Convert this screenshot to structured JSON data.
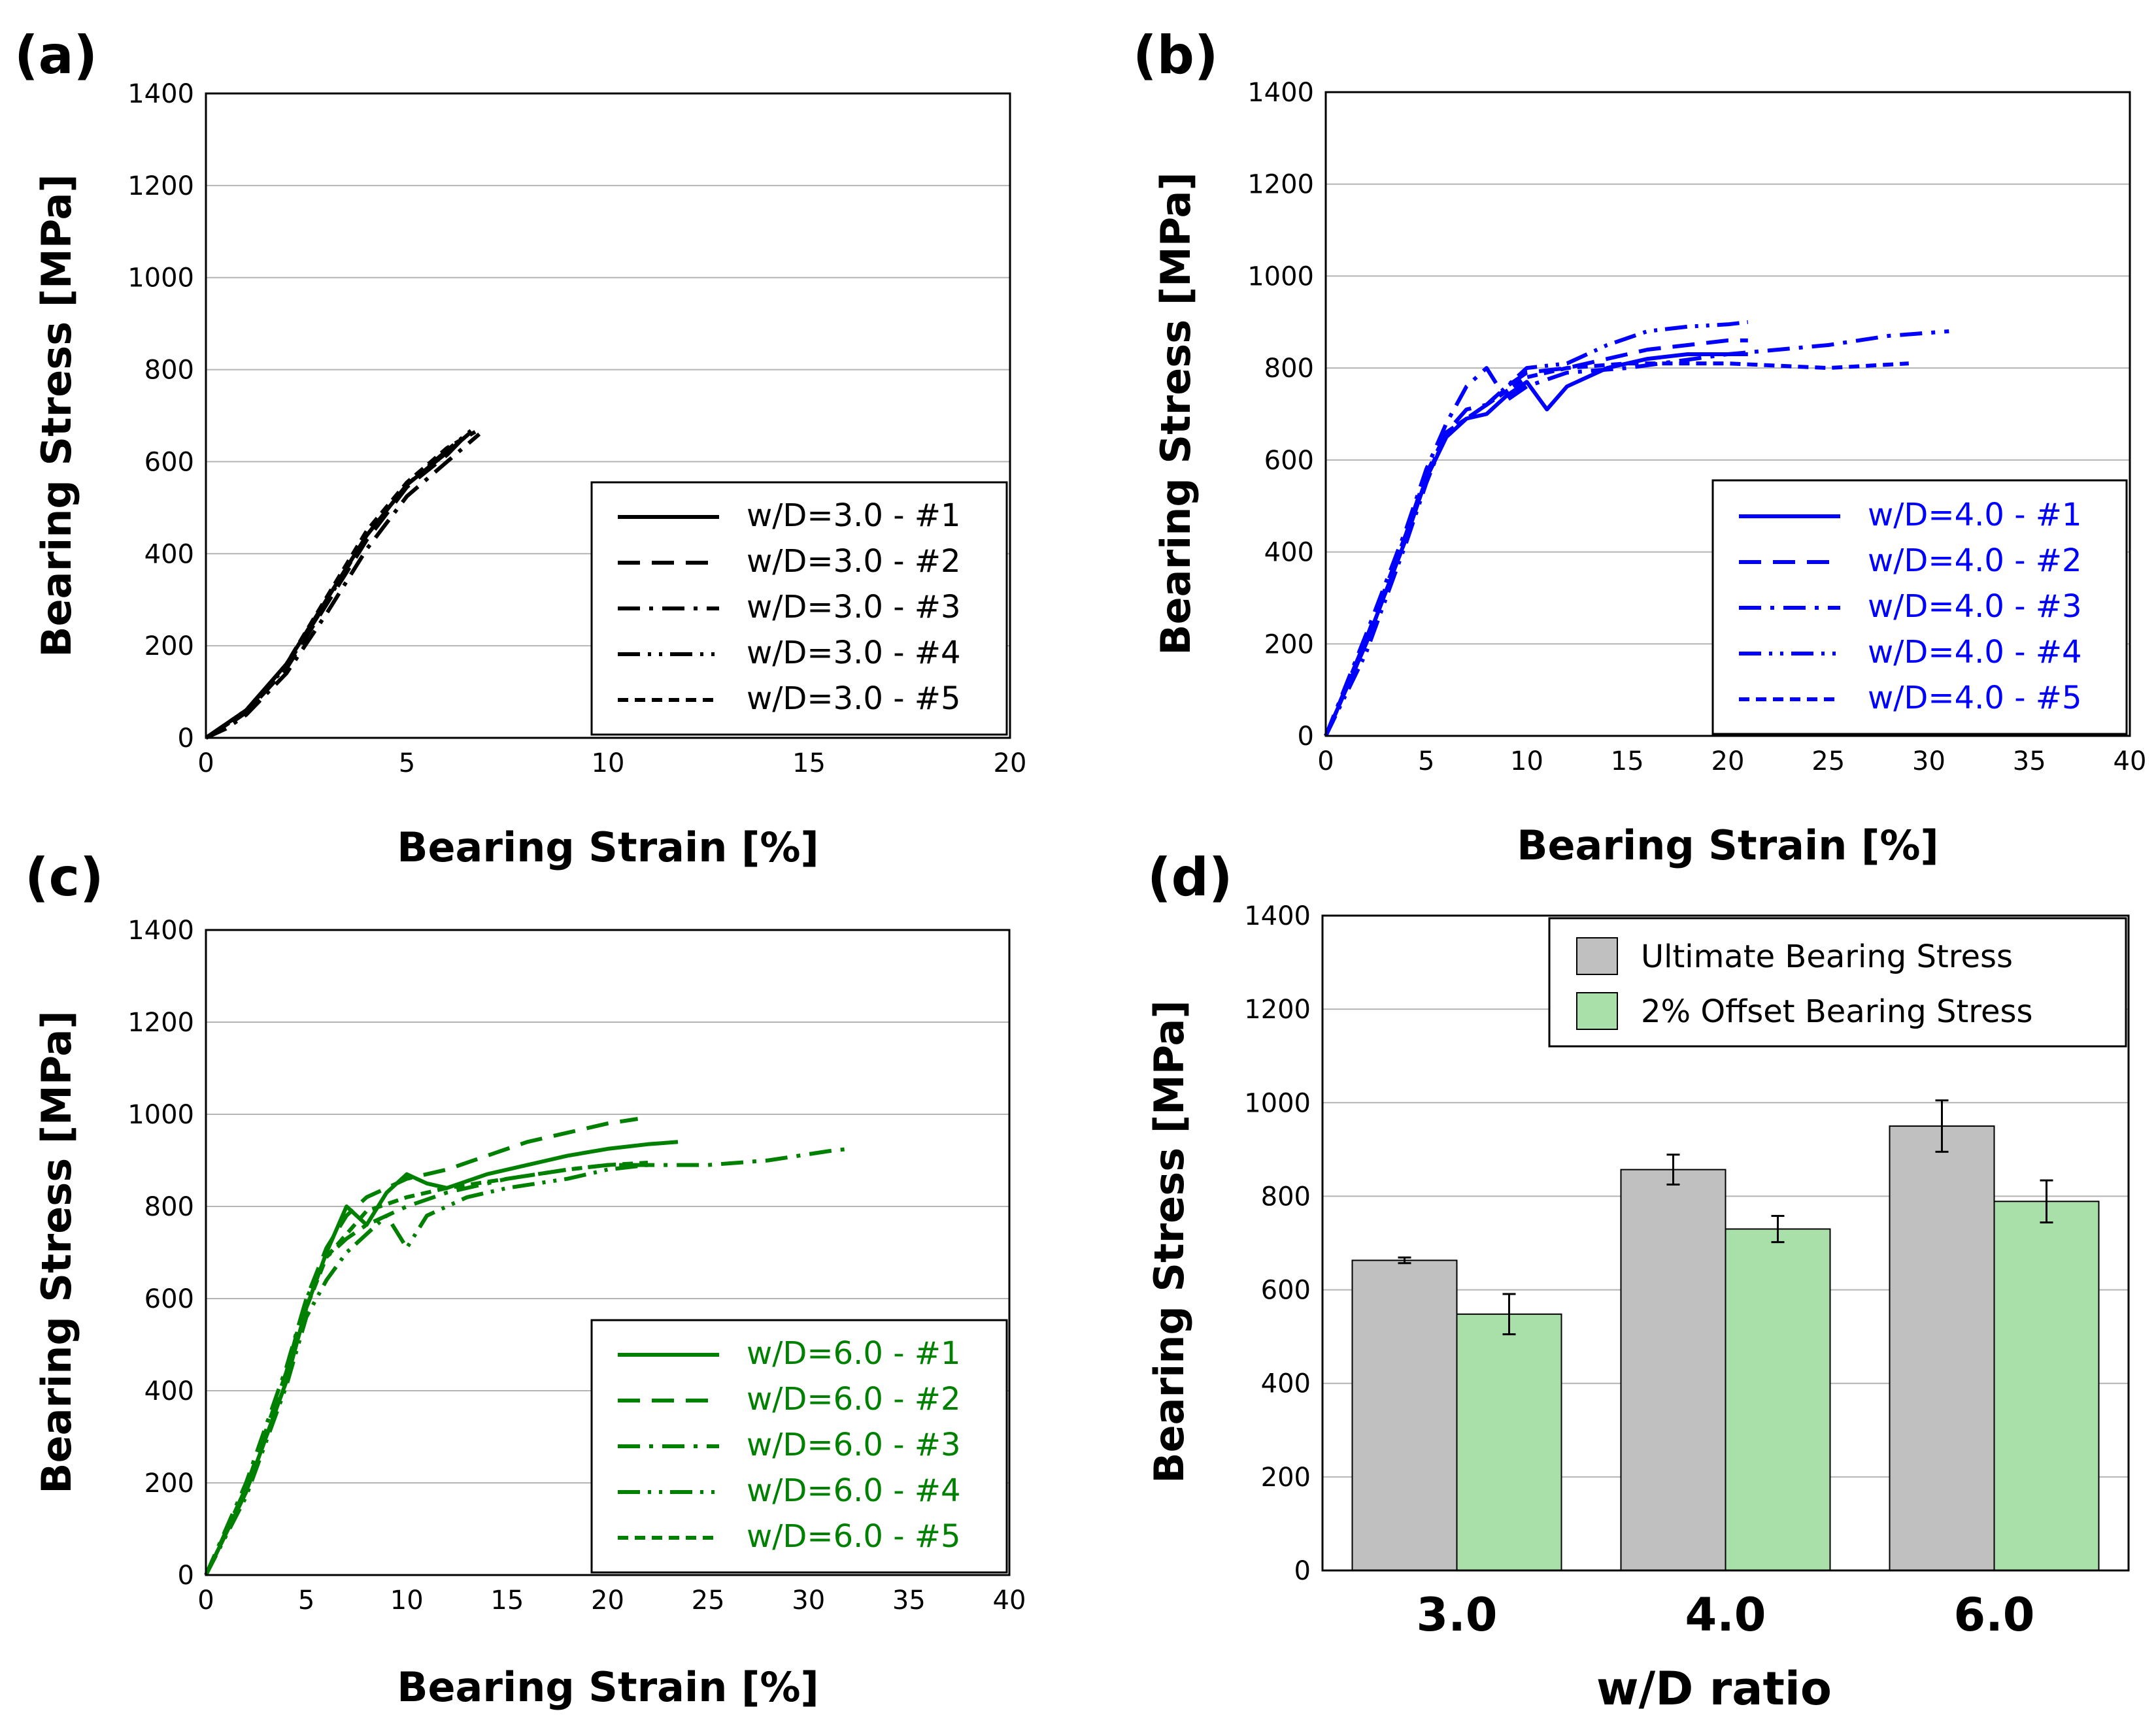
{
  "chart_data": [
    {
      "panel_label": "(a)",
      "type": "line",
      "xlabel": "Bearing Strain [%]",
      "ylabel": "Bearing Stress [MPa]",
      "xlim": [
        0,
        20
      ],
      "ylim": [
        0,
        1400
      ],
      "xticks": [
        "0",
        "5",
        "10",
        "15",
        "20"
      ],
      "yticks": [
        "0",
        "200",
        "400",
        "600",
        "800",
        "1000",
        "1200",
        "1400"
      ],
      "grid": "horizontal",
      "legend_position": "bottom-right",
      "color": "#000000",
      "series": [
        {
          "name": "w/D=3.0 - #1",
          "style": "solid",
          "points": [
            [
              0,
              0
            ],
            [
              0.5,
              30
            ],
            [
              1,
              60
            ],
            [
              2,
              160
            ],
            [
              3,
              300
            ],
            [
              4,
              440
            ],
            [
              5,
              550
            ],
            [
              6,
              620
            ],
            [
              6.6,
              665
            ]
          ]
        },
        {
          "name": "w/D=3.0 - #2",
          "style": "dashed",
          "points": [
            [
              0,
              0
            ],
            [
              0.5,
              25
            ],
            [
              1,
              55
            ],
            [
              2,
              150
            ],
            [
              3,
              290
            ],
            [
              4,
              430
            ],
            [
              5,
              545
            ],
            [
              6,
              615
            ],
            [
              6.5,
              660
            ]
          ]
        },
        {
          "name": "w/D=3.0 - #3",
          "style": "dashdot",
          "points": [
            [
              0,
              0
            ],
            [
              0.5,
              20
            ],
            [
              1,
              50
            ],
            [
              2,
              140
            ],
            [
              3,
              270
            ],
            [
              4,
              410
            ],
            [
              5,
              525
            ],
            [
              6,
              600
            ],
            [
              6.8,
              660
            ]
          ]
        },
        {
          "name": "w/D=3.0 - #4",
          "style": "dashdotdot",
          "points": [
            [
              0,
              0
            ],
            [
              0.5,
              30
            ],
            [
              1,
              60
            ],
            [
              2,
              155
            ],
            [
              3,
              295
            ],
            [
              4,
              440
            ],
            [
              5,
              550
            ],
            [
              6,
              625
            ],
            [
              6.6,
              668
            ]
          ]
        },
        {
          "name": "w/D=3.0 - #5",
          "style": "shortdash",
          "points": [
            [
              0,
              0
            ],
            [
              0.5,
              28
            ],
            [
              1,
              58
            ],
            [
              2,
              160
            ],
            [
              3,
              305
            ],
            [
              4,
              450
            ],
            [
              5,
              555
            ],
            [
              6,
              630
            ],
            [
              6.7,
              665
            ]
          ]
        }
      ]
    },
    {
      "panel_label": "(b)",
      "type": "line",
      "xlabel": "Bearing Strain [%]",
      "ylabel": "Bearing Stress [MPa]",
      "xlim": [
        0,
        40
      ],
      "ylim": [
        0,
        1400
      ],
      "xticks": [
        "0",
        "5",
        "10",
        "15",
        "20",
        "25",
        "30",
        "35",
        "40"
      ],
      "yticks": [
        "0",
        "200",
        "400",
        "600",
        "800",
        "1000",
        "1200",
        "1400"
      ],
      "grid": "horizontal",
      "legend_position": "bottom-right",
      "color": "#0000ff",
      "series": [
        {
          "name": "w/D=4.0 - #1",
          "style": "solid",
          "points": [
            [
              0,
              0
            ],
            [
              2,
              200
            ],
            [
              4,
              430
            ],
            [
              5,
              560
            ],
            [
              6,
              650
            ],
            [
              7,
              690
            ],
            [
              8,
              700
            ],
            [
              9,
              740
            ],
            [
              10,
              770
            ],
            [
              11,
              710
            ],
            [
              12,
              760
            ],
            [
              14,
              800
            ],
            [
              16,
              820
            ],
            [
              18,
              830
            ],
            [
              20,
              830
            ],
            [
              21,
              830
            ]
          ]
        },
        {
          "name": "w/D=4.0 - #2",
          "style": "dashed",
          "points": [
            [
              0,
              0
            ],
            [
              2,
              210
            ],
            [
              4,
              440
            ],
            [
              5,
              570
            ],
            [
              6,
              660
            ],
            [
              7,
              710
            ],
            [
              8,
              720
            ],
            [
              9,
              760
            ],
            [
              10,
              790
            ],
            [
              12,
              800
            ],
            [
              14,
              820
            ],
            [
              16,
              840
            ],
            [
              18,
              850
            ],
            [
              20,
              860
            ],
            [
              21,
              860
            ]
          ]
        },
        {
          "name": "w/D=4.0 - #3",
          "style": "dashdot",
          "points": [
            [
              0,
              0
            ],
            [
              2,
              220
            ],
            [
              4,
              450
            ],
            [
              5,
              580
            ],
            [
              6,
              680
            ],
            [
              7,
              760
            ],
            [
              8,
              800
            ],
            [
              9,
              730
            ],
            [
              10,
              760
            ],
            [
              12,
              790
            ],
            [
              15,
              800
            ],
            [
              20,
              830
            ],
            [
              25,
              850
            ],
            [
              28,
              870
            ],
            [
              31,
              880
            ]
          ]
        },
        {
          "name": "w/D=4.0 - #4",
          "style": "dashdotdot",
          "points": [
            [
              0,
              0
            ],
            [
              2,
              180
            ],
            [
              4,
              420
            ],
            [
              5,
              550
            ],
            [
              6,
              660
            ],
            [
              8,
              720
            ],
            [
              10,
              800
            ],
            [
              12,
              810
            ],
            [
              14,
              850
            ],
            [
              16,
              880
            ],
            [
              18,
              890
            ],
            [
              20,
              895
            ],
            [
              21,
              900
            ]
          ]
        },
        {
          "name": "w/D=4.0 - #5",
          "style": "shortdash",
          "points": [
            [
              0,
              0
            ],
            [
              2,
              200
            ],
            [
              4,
              430
            ],
            [
              5,
              560
            ],
            [
              6,
              660
            ],
            [
              8,
              720
            ],
            [
              10,
              780
            ],
            [
              12,
              800
            ],
            [
              15,
              810
            ],
            [
              20,
              810
            ],
            [
              25,
              800
            ],
            [
              29,
              810
            ]
          ]
        }
      ]
    },
    {
      "panel_label": "(c)",
      "type": "line",
      "xlabel": "Bearing Strain [%]",
      "ylabel": "Bearing Stress [MPa]",
      "xlim": [
        0,
        40
      ],
      "ylim": [
        0,
        1400
      ],
      "xticks": [
        "0",
        "5",
        "10",
        "15",
        "20",
        "25",
        "30",
        "35",
        "40"
      ],
      "yticks": [
        "0",
        "200",
        "400",
        "600",
        "800",
        "1000",
        "1200",
        "1400"
      ],
      "grid": "horizontal",
      "legend_position": "bottom-right",
      "color": "#008000",
      "series": [
        {
          "name": "w/D=6.0 - #1",
          "style": "solid",
          "points": [
            [
              0,
              0
            ],
            [
              2,
              180
            ],
            [
              4,
              420
            ],
            [
              5,
              580
            ],
            [
              6,
              700
            ],
            [
              7,
              800
            ],
            [
              8,
              760
            ],
            [
              9,
              830
            ],
            [
              10,
              870
            ],
            [
              11,
              850
            ],
            [
              12,
              840
            ],
            [
              14,
              870
            ],
            [
              16,
              890
            ],
            [
              18,
              910
            ],
            [
              20,
              925
            ],
            [
              22,
              935
            ],
            [
              23.5,
              940
            ]
          ]
        },
        {
          "name": "w/D=6.0 - #2",
          "style": "dashed",
          "points": [
            [
              0,
              0
            ],
            [
              2,
              190
            ],
            [
              4,
              440
            ],
            [
              5,
              600
            ],
            [
              6,
              710
            ],
            [
              7,
              780
            ],
            [
              8,
              820
            ],
            [
              10,
              860
            ],
            [
              12,
              880
            ],
            [
              14,
              910
            ],
            [
              16,
              940
            ],
            [
              18,
              960
            ],
            [
              20,
              980
            ],
            [
              21.5,
              990
            ]
          ]
        },
        {
          "name": "w/D=6.0 - #3",
          "style": "dashdot",
          "points": [
            [
              0,
              0
            ],
            [
              2,
              200
            ],
            [
              4,
              450
            ],
            [
              5,
              600
            ],
            [
              6,
              690
            ],
            [
              7,
              730
            ],
            [
              8,
              760
            ],
            [
              10,
              800
            ],
            [
              12,
              830
            ],
            [
              15,
              860
            ],
            [
              18,
              880
            ],
            [
              20,
              890
            ],
            [
              25,
              890
            ],
            [
              28,
              900
            ],
            [
              31,
              920
            ],
            [
              32,
              925
            ]
          ]
        },
        {
          "name": "w/D=6.0 - #4",
          "style": "dashdotdot",
          "points": [
            [
              0,
              0
            ],
            [
              2,
              170
            ],
            [
              4,
              410
            ],
            [
              5,
              560
            ],
            [
              6,
              640
            ],
            [
              7,
              700
            ],
            [
              8,
              740
            ],
            [
              9,
              780
            ],
            [
              10,
              710
            ],
            [
              11,
              780
            ],
            [
              13,
              820
            ],
            [
              15,
              840
            ],
            [
              18,
              860
            ],
            [
              20,
              880
            ],
            [
              22,
              890
            ]
          ]
        },
        {
          "name": "w/D=6.0 - #5",
          "style": "shortdash",
          "points": [
            [
              0,
              0
            ],
            [
              2,
              180
            ],
            [
              4,
              420
            ],
            [
              5,
              580
            ],
            [
              6,
              690
            ],
            [
              7,
              740
            ],
            [
              8,
              790
            ],
            [
              10,
              820
            ],
            [
              12,
              840
            ],
            [
              15,
              860
            ],
            [
              18,
              880
            ],
            [
              20,
              890
            ],
            [
              22,
              895
            ]
          ]
        }
      ]
    },
    {
      "panel_label": "(d)",
      "type": "bar",
      "xlabel": "w/D ratio",
      "ylabel": "Bearing Stress [MPa]",
      "ylim": [
        0,
        1400
      ],
      "yticks": [
        "0",
        "200",
        "400",
        "600",
        "800",
        "1000",
        "1200",
        "1400"
      ],
      "categories": [
        "3.0",
        "4.0",
        "6.0"
      ],
      "grid": "horizontal",
      "legend_position": "top-right",
      "series": [
        {
          "name": "Ultimate Bearing Stress",
          "color": "#c0c0c0",
          "values": [
            663,
            857,
            950
          ],
          "errors": [
            6,
            32,
            55
          ]
        },
        {
          "name": "2% Offset Bearing Stress",
          "color": "#a9dfa9",
          "values": [
            548,
            730,
            789
          ],
          "errors": [
            43,
            28,
            45
          ]
        }
      ]
    }
  ]
}
